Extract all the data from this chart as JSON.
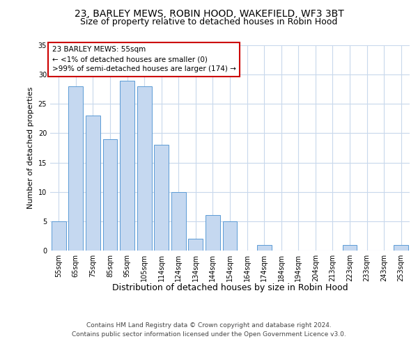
{
  "title": "23, BARLEY MEWS, ROBIN HOOD, WAKEFIELD, WF3 3BT",
  "subtitle": "Size of property relative to detached houses in Robin Hood",
  "xlabel": "Distribution of detached houses by size in Robin Hood",
  "ylabel": "Number of detached properties",
  "categories": [
    "55sqm",
    "65sqm",
    "75sqm",
    "85sqm",
    "95sqm",
    "105sqm",
    "114sqm",
    "124sqm",
    "134sqm",
    "144sqm",
    "154sqm",
    "164sqm",
    "174sqm",
    "184sqm",
    "194sqm",
    "204sqm",
    "213sqm",
    "223sqm",
    "233sqm",
    "243sqm",
    "253sqm"
  ],
  "values": [
    5,
    28,
    23,
    19,
    29,
    28,
    18,
    10,
    2,
    6,
    5,
    0,
    1,
    0,
    0,
    0,
    0,
    1,
    0,
    0,
    1
  ],
  "bar_color": "#c5d8f0",
  "bar_edge_color": "#5b9bd5",
  "annotation_title": "23 BARLEY MEWS: 55sqm",
  "annotation_line1": "← <1% of detached houses are smaller (0)",
  "annotation_line2": ">99% of semi-detached houses are larger (174) →",
  "ylim": [
    0,
    35
  ],
  "yticks": [
    0,
    5,
    10,
    15,
    20,
    25,
    30,
    35
  ],
  "footer1": "Contains HM Land Registry data © Crown copyright and database right 2024.",
  "footer2": "Contains public sector information licensed under the Open Government Licence v3.0.",
  "bg_color": "#ffffff",
  "grid_color": "#c8d8ec",
  "title_fontsize": 10,
  "subtitle_fontsize": 9,
  "xlabel_fontsize": 9,
  "ylabel_fontsize": 8,
  "tick_fontsize": 7,
  "annotation_fontsize": 7.5,
  "footer_fontsize": 6.5
}
